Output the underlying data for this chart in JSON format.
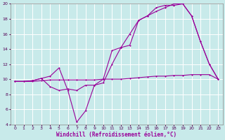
{
  "xlabel": "Windchill (Refroidissement éolien,°C)",
  "bg_color": "#c8eaea",
  "grid_color": "#ffffff",
  "line_color": "#990099",
  "xlim": [
    -0.5,
    23.5
  ],
  "ylim": [
    4,
    20
  ],
  "yticks": [
    4,
    6,
    8,
    10,
    12,
    14,
    16,
    18,
    20
  ],
  "xticks": [
    0,
    1,
    2,
    3,
    4,
    5,
    6,
    7,
    8,
    9,
    10,
    11,
    12,
    13,
    14,
    15,
    16,
    17,
    18,
    19,
    20,
    21,
    22,
    23
  ],
  "line1_x": [
    0,
    1,
    2,
    3,
    4,
    5,
    6,
    7,
    8,
    9,
    10,
    11,
    12,
    13,
    14,
    15,
    16,
    17,
    18,
    19,
    20,
    21,
    22,
    23
  ],
  "line1_y": [
    9.7,
    9.7,
    9.7,
    9.8,
    9.9,
    9.9,
    9.9,
    9.9,
    9.9,
    9.9,
    10.0,
    10.0,
    10.0,
    10.1,
    10.2,
    10.3,
    10.4,
    10.4,
    10.5,
    10.5,
    10.6,
    10.6,
    10.6,
    10.0
  ],
  "line2_x": [
    0,
    1,
    2,
    3,
    4,
    5,
    6,
    7,
    8,
    9,
    10,
    11,
    12,
    13,
    14,
    15,
    16,
    17,
    18,
    19,
    20,
    21,
    22,
    23
  ],
  "line2_y": [
    9.7,
    9.7,
    9.8,
    10.1,
    10.4,
    11.5,
    8.5,
    4.3,
    5.8,
    9.2,
    9.5,
    12.0,
    14.2,
    14.5,
    17.8,
    18.4,
    19.5,
    19.8,
    19.8,
    20.0,
    18.4,
    15.0,
    12.0,
    10.0
  ],
  "line3_x": [
    0,
    1,
    2,
    3,
    4,
    5,
    6,
    7,
    8,
    9,
    10,
    11,
    12,
    13,
    14,
    15,
    16,
    17,
    18,
    19,
    20,
    21,
    22,
    23
  ],
  "line3_y": [
    9.7,
    9.7,
    9.8,
    10.1,
    9.0,
    8.5,
    8.7,
    8.5,
    9.2,
    9.2,
    10.0,
    13.8,
    14.2,
    16.0,
    17.8,
    18.4,
    19.0,
    19.5,
    20.0,
    20.0,
    18.4,
    15.0,
    12.0,
    10.0
  ]
}
